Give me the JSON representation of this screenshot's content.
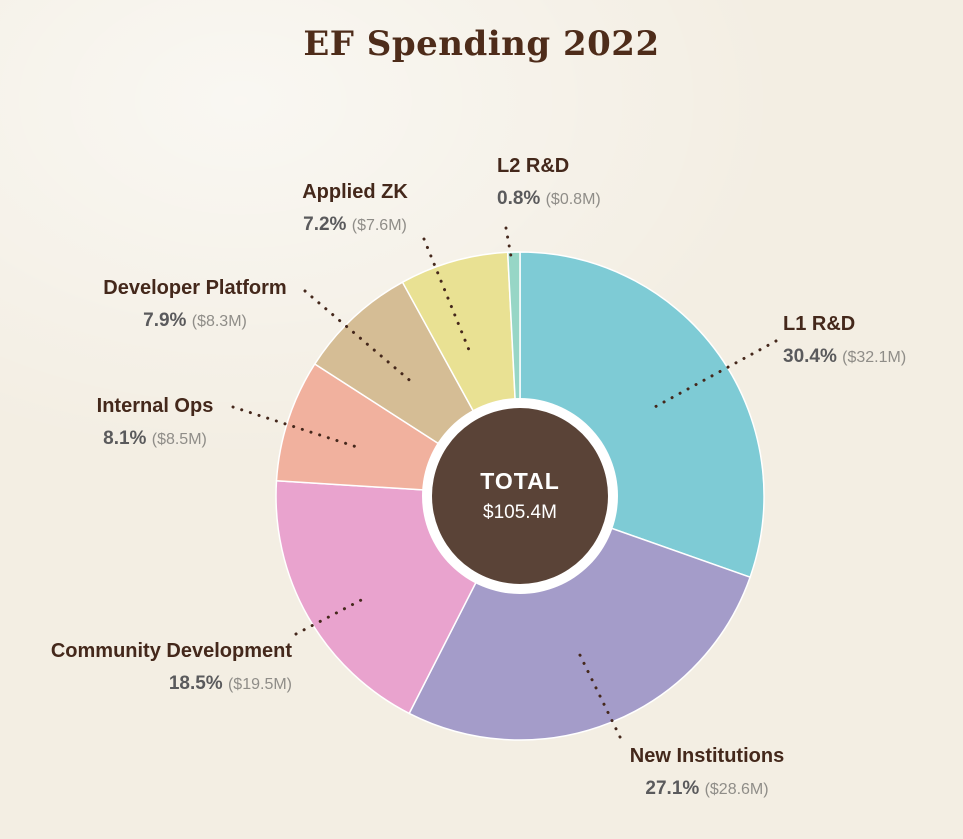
{
  "chart_data": {
    "type": "pie",
    "style": "donut",
    "title": "EF Spending 2022",
    "direction": "clockwise",
    "start_angle_deg_from_top": 0,
    "center": {
      "label": "TOTAL",
      "value": "$105.4M"
    },
    "segments": [
      {
        "label": "L1 R&D",
        "percent": 30.4,
        "percent_label": "30.4%",
        "amount_label": "($32.1M)",
        "color": "#7ecbd5"
      },
      {
        "label": "New Institutions",
        "percent": 27.1,
        "percent_label": "27.1%",
        "amount_label": "($28.6M)",
        "color": "#a49cc9"
      },
      {
        "label": "Community Development",
        "percent": 18.5,
        "percent_label": "18.5%",
        "amount_label": "($19.5M)",
        "color": "#e9a3ce"
      },
      {
        "label": "Internal Ops",
        "percent": 8.1,
        "percent_label": "8.1%",
        "amount_label": "($8.5M)",
        "color": "#f1b19e"
      },
      {
        "label": "Developer Platform",
        "percent": 7.9,
        "percent_label": "7.9%",
        "amount_label": "($8.3M)",
        "color": "#d5bd95"
      },
      {
        "label": "Applied ZK",
        "percent": 7.2,
        "percent_label": "7.2%",
        "amount_label": "($7.6M)",
        "color": "#e9e193"
      },
      {
        "label": "L2 R&D",
        "percent": 0.8,
        "percent_label": "0.8%",
        "amount_label": "($0.8M)",
        "color": "#97d6c6"
      }
    ],
    "colors": {
      "background": "#f3eee3",
      "center_disc": "#5a4337",
      "leader_line": "#45281c"
    }
  }
}
